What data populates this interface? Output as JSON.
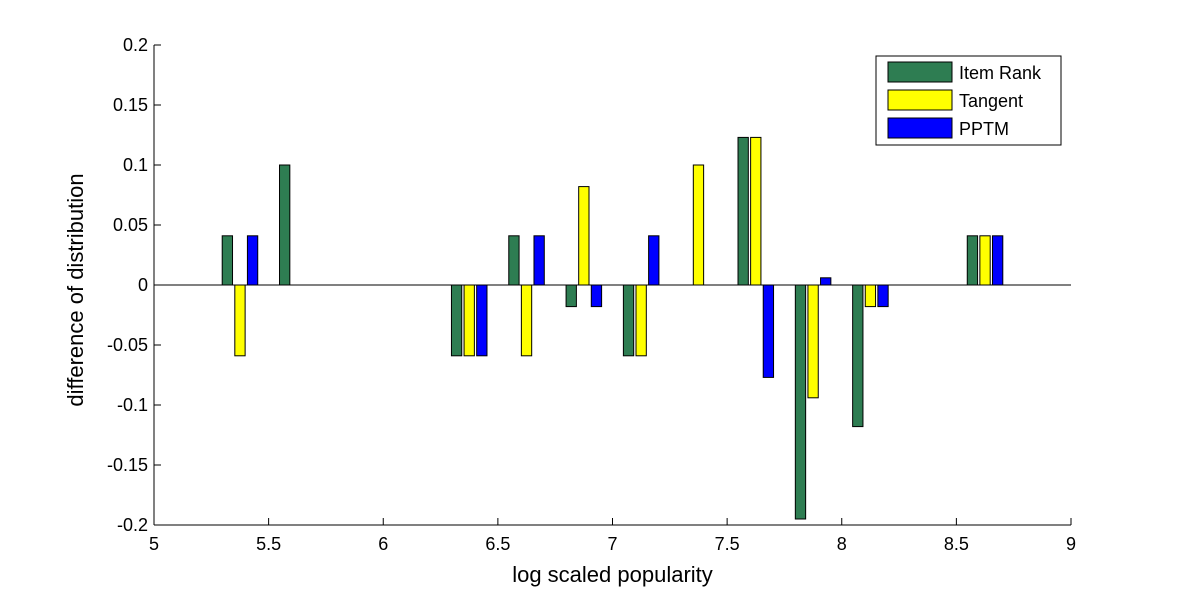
{
  "chart_data": {
    "type": "bar",
    "xlabel": "log scaled popularity",
    "ylabel": "difference of distribution",
    "xlim": [
      5,
      9
    ],
    "ylim": [
      -0.2,
      0.2
    ],
    "xticks": [
      "5",
      "5.5",
      "6",
      "6.5",
      "7",
      "7.5",
      "8",
      "8.5",
      "9"
    ],
    "yticks": [
      "-0.2",
      "-0.15",
      "-0.1",
      "-0.05",
      "0",
      "0.05",
      "0.1",
      "0.15",
      "0.2"
    ],
    "grid": false,
    "legend_position": "top-right",
    "groups": [
      5.375,
      5.625,
      6.375,
      6.625,
      6.875,
      7.125,
      7.375,
      7.625,
      7.875,
      8.125,
      8.625
    ],
    "series": [
      {
        "name": "Item Rank",
        "color": "#2e7d52",
        "values": [
          0.041,
          0.1,
          -0.059,
          0.041,
          -0.018,
          -0.059,
          0,
          0.123,
          -0.195,
          -0.118,
          0.041
        ]
      },
      {
        "name": "Tangent",
        "color": "#ffff00",
        "values": [
          -0.059,
          0,
          -0.059,
          -0.059,
          0.082,
          -0.059,
          0.1,
          0.123,
          -0.094,
          -0.018,
          0.041
        ]
      },
      {
        "name": "PPTM",
        "color": "#0000ff",
        "values": [
          0.041,
          0,
          -0.059,
          0.041,
          -0.018,
          0.041,
          0,
          -0.077,
          0.006,
          -0.018,
          0.041
        ]
      }
    ]
  }
}
